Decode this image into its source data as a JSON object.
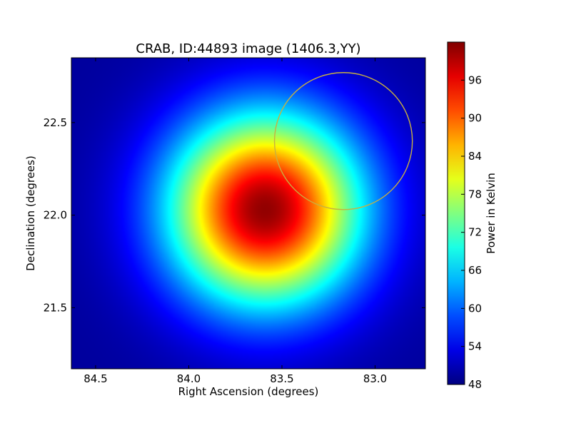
{
  "chart_data": {
    "type": "heatmap",
    "title": "CRAB, ID:44893 image (1406.3,YY)",
    "xlabel": "Right Ascension (degrees)",
    "ylabel": "Declination (degrees)",
    "xlim": [
      84.63,
      82.73
    ],
    "ylim": [
      21.17,
      22.85
    ],
    "x_ticks": [
      84.5,
      84.0,
      83.5,
      83.0
    ],
    "x_tick_labels": [
      "84.5",
      "84.0",
      "83.5",
      "83.0"
    ],
    "y_ticks": [
      21.5,
      22.0,
      22.5
    ],
    "y_tick_labels": [
      "21.5",
      "22.0",
      "22.5"
    ],
    "grid": false,
    "colormap": "jet",
    "value_range": [
      48,
      102
    ],
    "peak": {
      "ra": 83.59,
      "dec": 22.03,
      "value": 101
    },
    "background_level": 49.5,
    "source_sigma_deg": 0.36,
    "colorbar": {
      "label": "Power in Kelvin",
      "ticks": [
        48,
        54,
        60,
        66,
        72,
        78,
        84,
        90,
        96
      ],
      "tick_labels": [
        "48",
        "54",
        "60",
        "66",
        "72",
        "78",
        "84",
        "90",
        "96"
      ]
    },
    "annotations": [
      {
        "type": "circle",
        "center_ra": 83.17,
        "center_dec": 22.4,
        "radius_deg": 0.37,
        "color": "#c8b040"
      }
    ]
  }
}
